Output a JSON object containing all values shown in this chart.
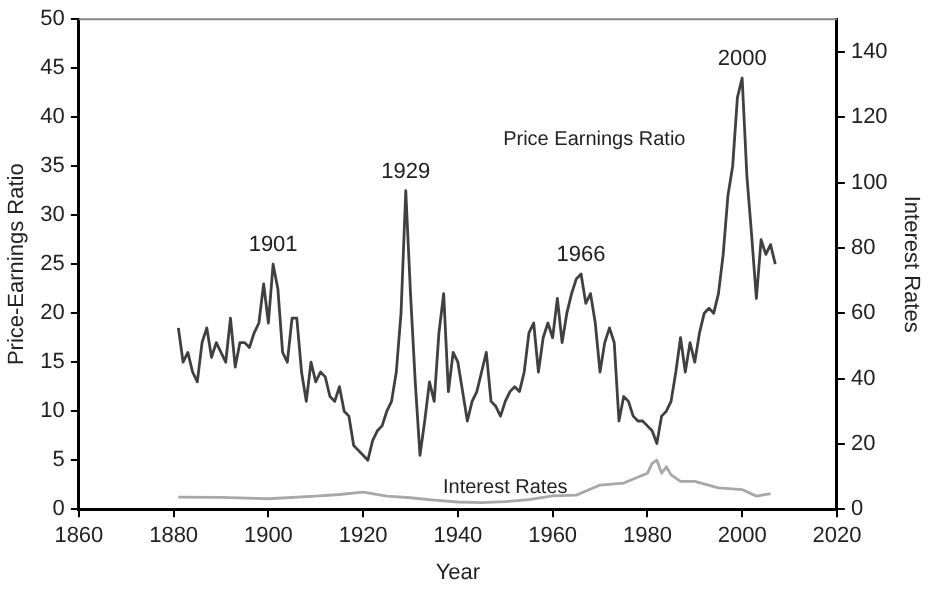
{
  "chart_data": {
    "type": "line",
    "xlabel": "Year",
    "ylabel": "Price-Earnings Ratio",
    "y2label": "Interest Rates",
    "xlim": [
      1860,
      2020
    ],
    "xticks": [
      1860,
      1880,
      1900,
      1920,
      1940,
      1960,
      1980,
      2000,
      2020
    ],
    "ylim": [
      0,
      50
    ],
    "yticks": [
      0,
      5,
      10,
      15,
      20,
      25,
      30,
      35,
      40,
      45,
      50
    ],
    "y2lim": [
      0,
      150
    ],
    "y2ticks": [
      0,
      20,
      40,
      60,
      80,
      100,
      120,
      140
    ],
    "grid": false,
    "legend": false,
    "marker": "none",
    "line_style": "solid",
    "annotations": [
      {
        "text": "1901",
        "x": 1901,
        "y": 25
      },
      {
        "text": "1929",
        "x": 1929,
        "y": 32.5
      },
      {
        "text": "1966",
        "x": 1966,
        "y": 24
      },
      {
        "text": "2000",
        "x": 2000,
        "y": 44
      }
    ],
    "series": [
      {
        "name": "Price Earnings Ratio",
        "color": "#404040",
        "x": [
          1881,
          1882,
          1883,
          1884,
          1885,
          1886,
          1887,
          1888,
          1889,
          1890,
          1891,
          1892,
          1893,
          1894,
          1895,
          1896,
          1897,
          1898,
          1899,
          1900,
          1901,
          1902,
          1903,
          1904,
          1905,
          1906,
          1907,
          1908,
          1909,
          1910,
          1911,
          1912,
          1913,
          1914,
          1915,
          1916,
          1917,
          1918,
          1919,
          1920,
          1921,
          1922,
          1923,
          1924,
          1925,
          1926,
          1927,
          1928,
          1929,
          1930,
          1931,
          1932,
          1933,
          1934,
          1935,
          1936,
          1937,
          1938,
          1939,
          1940,
          1941,
          1942,
          1943,
          1944,
          1945,
          1946,
          1947,
          1948,
          1949,
          1950,
          1951,
          1952,
          1953,
          1954,
          1955,
          1956,
          1957,
          1958,
          1959,
          1960,
          1961,
          1962,
          1963,
          1964,
          1965,
          1966,
          1967,
          1968,
          1969,
          1970,
          1971,
          1972,
          1973,
          1974,
          1975,
          1976,
          1977,
          1978,
          1979,
          1980,
          1981,
          1982,
          1983,
          1984,
          1985,
          1986,
          1987,
          1988,
          1989,
          1990,
          1991,
          1992,
          1993,
          1994,
          1995,
          1996,
          1997,
          1998,
          1999,
          2000,
          2001,
          2002,
          2003,
          2004,
          2005,
          2006,
          2007
        ],
        "values": [
          18.5,
          15,
          16,
          14,
          13,
          17,
          18.5,
          15.5,
          17,
          16,
          15,
          19.5,
          14.5,
          17,
          17,
          16.5,
          18,
          19,
          23,
          19,
          25,
          22.5,
          16,
          15,
          19.5,
          19.5,
          14,
          11,
          15,
          13,
          14,
          13.5,
          11.5,
          11,
          12.5,
          10,
          9.5,
          6.5,
          6,
          5.5,
          5,
          7,
          8,
          8.5,
          10,
          11,
          14,
          20,
          32.5,
          22,
          13,
          5.5,
          9,
          13,
          11,
          18,
          22,
          12,
          16,
          15,
          12,
          9,
          11,
          12,
          14,
          16,
          11,
          10.5,
          9.5,
          11,
          12,
          12.5,
          12,
          14,
          18,
          19,
          14,
          17.5,
          19,
          17.5,
          21.5,
          17,
          20,
          22,
          23.5,
          24,
          21,
          22,
          19,
          14,
          17,
          18.5,
          17,
          9,
          11.5,
          11,
          9.5,
          9,
          9,
          8.5,
          8,
          6.7,
          9.5,
          10,
          11,
          14,
          17.5,
          14,
          17,
          15,
          18,
          20,
          20.5,
          20,
          22,
          26,
          32,
          35,
          42,
          44,
          34,
          28,
          21.5,
          27.5,
          26,
          27,
          25
        ]
      },
      {
        "name": "Interest Rates",
        "color": "#a8a8a8",
        "axis": "y2",
        "x": [
          1881,
          1890,
          1900,
          1910,
          1915,
          1920,
          1925,
          1930,
          1935,
          1940,
          1945,
          1950,
          1955,
          1960,
          1965,
          1970,
          1975,
          1980,
          1981,
          1982,
          1983,
          1984,
          1985,
          1987,
          1990,
          1995,
          2000,
          2003,
          2006
        ],
        "values": [
          3.7,
          3.6,
          3.2,
          4,
          4.5,
          5.2,
          4,
          3.5,
          2.8,
          2.2,
          2,
          2.3,
          2.9,
          4.1,
          4.3,
          7.4,
          8,
          11,
          14,
          15,
          11,
          13,
          10.5,
          8.5,
          8.5,
          6.5,
          6,
          4,
          4.8
        ]
      }
    ]
  }
}
